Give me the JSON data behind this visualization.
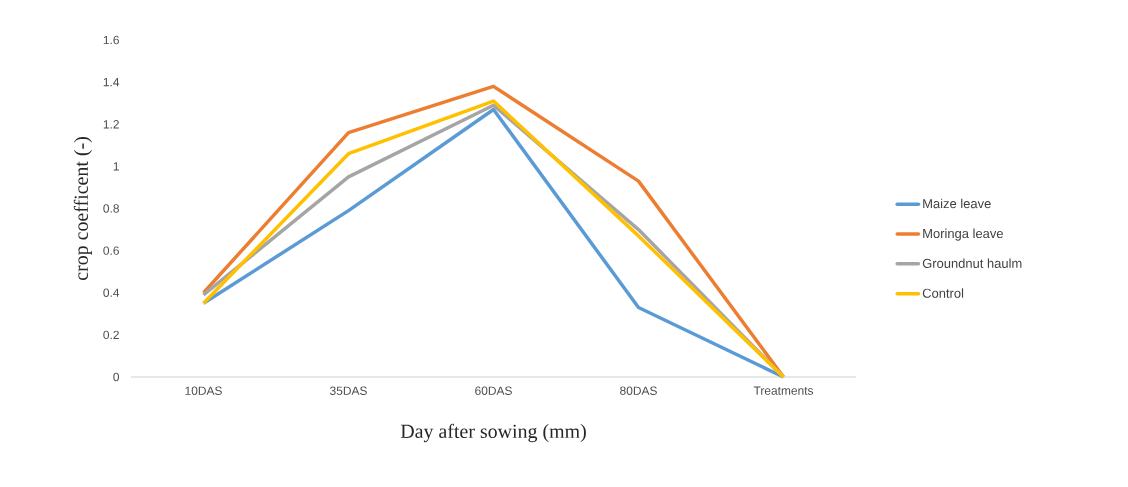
{
  "chart_data": {
    "type": "line",
    "xlabel": "Day after sowing (mm)",
    "ylabel": "crop coefficent (-)",
    "categories": [
      "10DAS",
      "35DAS",
      "60DAS",
      "80DAS",
      "Treatments"
    ],
    "ylim": [
      0,
      1.6
    ],
    "yticks": [
      0,
      0.2,
      0.4,
      0.6,
      0.8,
      1,
      1.2,
      1.4,
      1.6
    ],
    "legend": "right",
    "grid": false,
    "series": [
      {
        "name": "Maize leave",
        "color": "#5b9bd5",
        "values": [
          0.35,
          0.79,
          1.27,
          0.33,
          0
        ]
      },
      {
        "name": "Moringa leave",
        "color": "#ed7d31",
        "values": [
          0.4,
          1.16,
          1.38,
          0.93,
          0
        ]
      },
      {
        "name": "Groundnut haulm",
        "color": "#a5a5a5",
        "values": [
          0.39,
          0.95,
          1.29,
          0.7,
          0
        ]
      },
      {
        "name": "Control",
        "color": "#ffc000",
        "values": [
          0.35,
          1.06,
          1.31,
          0.67,
          0
        ]
      }
    ]
  }
}
